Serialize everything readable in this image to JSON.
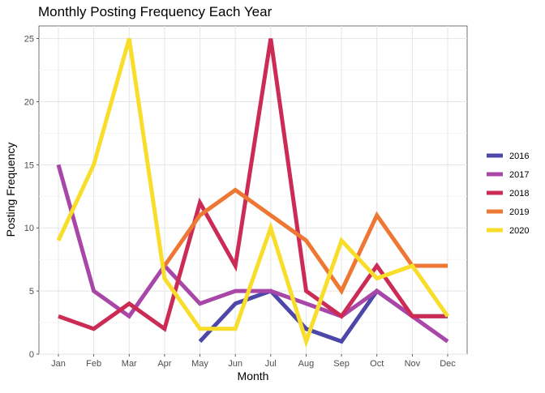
{
  "chart_data": {
    "type": "line",
    "title": "Monthly Posting Frequency Each Year",
    "xlabel": "Month",
    "ylabel": "Posting Frequency",
    "categories": [
      "Jan",
      "Feb",
      "Mar",
      "Apr",
      "May",
      "Jun",
      "Jul",
      "Aug",
      "Sep",
      "Oct",
      "Nov",
      "Dec"
    ],
    "ylim": [
      0,
      26
    ],
    "yticks": [
      0,
      5,
      10,
      15,
      20,
      25
    ],
    "grid": true,
    "legend_position": "right",
    "series": [
      {
        "name": "2016",
        "color": "#4c47a8",
        "values": [
          null,
          null,
          null,
          null,
          1,
          4,
          5,
          2,
          1,
          5,
          3,
          3
        ]
      },
      {
        "name": "2017",
        "color": "#a847a8",
        "values": [
          15,
          5,
          3,
          7,
          4,
          5,
          5,
          4,
          3,
          5,
          3,
          1
        ]
      },
      {
        "name": "2018",
        "color": "#cc2b55",
        "values": [
          3,
          2,
          4,
          2,
          12,
          7,
          25,
          5,
          3,
          7,
          3,
          3
        ]
      },
      {
        "name": "2019",
        "color": "#ee7733",
        "values": [
          null,
          null,
          null,
          7,
          11,
          13,
          11,
          9,
          5,
          11,
          7,
          7
        ]
      },
      {
        "name": "2020",
        "color": "#f8dd2a",
        "values": [
          9,
          15,
          25,
          6,
          2,
          2,
          10,
          1,
          9,
          6,
          7,
          3
        ]
      }
    ]
  }
}
